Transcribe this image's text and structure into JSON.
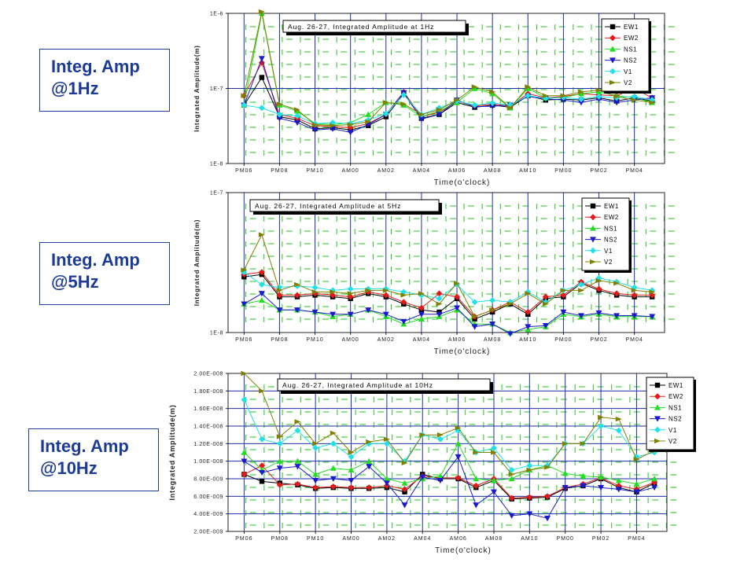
{
  "labels": [
    {
      "line1": "Integ. Amp",
      "line2": "@1Hz"
    },
    {
      "line1": "Integ. Amp",
      "line2": "@5Hz"
    },
    {
      "line1": "Integ. Amp",
      "line2": "@10Hz"
    }
  ],
  "colors": {
    "EW1": "#000000",
    "EW2": "#e31a1c",
    "NS1": "#22dd22",
    "NS2": "#1a1acc",
    "V1": "#22e0e8",
    "V2": "#808000",
    "grid": "#1c2fa8",
    "minor": "#33cc33"
  },
  "chart_data": [
    {
      "type": "line",
      "title": "Aug. 26-27, Integrated Amplitude at 1Hz",
      "xlabel": "Time(o'clock)",
      "ylabel": "Integrated Amplitude(m)",
      "yscale": "log",
      "ylim": [
        1e-08,
        1e-06
      ],
      "yticks": [
        1e-08,
        1e-07,
        1e-06
      ],
      "ytick_labels": [
        "1E-8",
        "1E-7",
        "1E-6"
      ],
      "xtick_labels": [
        "PM06",
        "PM08",
        "PM10",
        "AM00",
        "AM02",
        "AM04",
        "AM06",
        "AM08",
        "AM10",
        "PM00",
        "PM02",
        "PM04"
      ],
      "legend": "top-right",
      "x": [
        0,
        1,
        2,
        3,
        4,
        5,
        6,
        7,
        8,
        9,
        10,
        11,
        12,
        13,
        14,
        15,
        16,
        17,
        18,
        19,
        20,
        21,
        22,
        23
      ],
      "series": [
        {
          "name": "EW1",
          "values": [
            6e-08,
            1.4e-07,
            4.2e-08,
            3.8e-08,
            2.9e-08,
            3e-08,
            2.8e-08,
            3.2e-08,
            4.2e-08,
            8.5e-08,
            4e-08,
            4.5e-08,
            6.5e-08,
            5.6e-08,
            6e-08,
            5.6e-08,
            8e-08,
            7e-08,
            7.2e-08,
            7e-08,
            7.5e-08,
            6.8e-08,
            7.5e-08,
            6.8e-08
          ]
        },
        {
          "name": "EW2",
          "values": [
            8e-08,
            2.2e-07,
            4.5e-08,
            4e-08,
            3.2e-08,
            3.1e-08,
            3e-08,
            3.4e-08,
            4.5e-08,
            9e-08,
            4.2e-08,
            4.8e-08,
            6.8e-08,
            5.8e-08,
            6.2e-08,
            5.8e-08,
            8.5e-08,
            7.5e-08,
            7.8e-08,
            8.5e-08,
            8.2e-08,
            8e-08,
            1e-07,
            7.5e-08
          ]
        },
        {
          "name": "NS1",
          "values": [
            6e-08,
            1e-06,
            6e-08,
            5e-08,
            3.4e-08,
            3.3e-08,
            3.5e-08,
            4.5e-08,
            6.5e-08,
            6e-08,
            4.2e-08,
            5e-08,
            6.5e-08,
            1e-07,
            8.5e-08,
            5.5e-08,
            1e-07,
            7.5e-08,
            7.5e-08,
            8.5e-08,
            9e-08,
            8e-08,
            7.5e-08,
            6.5e-08
          ]
        },
        {
          "name": "NS2",
          "values": [
            6e-08,
            2.5e-07,
            4e-08,
            3.5e-08,
            2.8e-08,
            2.9e-08,
            2.6e-08,
            3.3e-08,
            4.5e-08,
            8.8e-08,
            3.9e-08,
            4.5e-08,
            7e-08,
            5.7e-08,
            5.8e-08,
            6e-08,
            7.8e-08,
            7.3e-08,
            7e-08,
            6.5e-08,
            7.2e-08,
            6.5e-08,
            7e-08,
            7.5e-08
          ]
        },
        {
          "name": "V1",
          "values": [
            6e-08,
            5.5e-08,
            4.5e-08,
            4.3e-08,
            3.4e-08,
            3.5e-08,
            3.4e-08,
            3.8e-08,
            4.6e-08,
            8.2e-08,
            4.5e-08,
            5.5e-08,
            6.8e-08,
            6e-08,
            6.4e-08,
            6e-08,
            8e-08,
            7.4e-08,
            7.6e-08,
            7.2e-08,
            7.8e-08,
            7.5e-08,
            7.8e-08,
            7e-08
          ]
        },
        {
          "name": "V2",
          "values": [
            8e-08,
            1.05e-06,
            6.2e-08,
            5.2e-08,
            3.3e-08,
            3.2e-08,
            3.3e-08,
            3.6e-08,
            6.5e-08,
            6.2e-08,
            4.5e-08,
            5.2e-08,
            7e-08,
            1.05e-07,
            9e-08,
            5.5e-08,
            1.05e-07,
            8e-08,
            8e-08,
            9e-08,
            9.5e-08,
            7.8e-08,
            7e-08,
            6.5e-08
          ]
        }
      ]
    },
    {
      "type": "line",
      "title": "Aug. 26-27, Integrated Amplitude at 5Hz",
      "xlabel": "Time(o'clock)",
      "ylabel": "Integrated Amplitude(m)",
      "yscale": "log",
      "ylim": [
        1e-08,
        1e-07
      ],
      "yticks": [
        1e-08,
        1e-07
      ],
      "ytick_labels": [
        "1E-8",
        "1E-7"
      ],
      "xtick_labels": [
        "PM06",
        "PM08",
        "PM10",
        "AM00",
        "AM02",
        "AM04",
        "AM06",
        "AM08",
        "AM10",
        "PM00",
        "PM02",
        "PM04"
      ],
      "legend": "top-right",
      "x": [
        0,
        1,
        2,
        3,
        4,
        5,
        6,
        7,
        8,
        9,
        10,
        11,
        12,
        13,
        14,
        15,
        16,
        17,
        18,
        19,
        20,
        21,
        22,
        23
      ],
      "series": [
        {
          "name": "EW1",
          "values": [
            2.5e-08,
            2.6e-08,
            1.8e-08,
            1.8e-08,
            1.85e-08,
            1.8e-08,
            1.75e-08,
            1.9e-08,
            1.8e-08,
            1.6e-08,
            1.45e-08,
            1.4e-08,
            1.75e-08,
            1.25e-08,
            1.4e-08,
            1.6e-08,
            1.35e-08,
            1.75e-08,
            1.8e-08,
            2.25e-08,
            2e-08,
            1.85e-08,
            1.8e-08,
            1.8e-08
          ]
        },
        {
          "name": "EW2",
          "values": [
            2.6e-08,
            2.7e-08,
            1.85e-08,
            1.85e-08,
            1.9e-08,
            1.85e-08,
            1.8e-08,
            1.95e-08,
            1.85e-08,
            1.65e-08,
            1.5e-08,
            1.9e-08,
            1.8e-08,
            1.3e-08,
            1.45e-08,
            1.65e-08,
            1.4e-08,
            1.8e-08,
            1.85e-08,
            2.3e-08,
            2.05e-08,
            1.9e-08,
            1.85e-08,
            1.85e-08
          ]
        },
        {
          "name": "NS1",
          "values": [
            1.6e-08,
            1.7e-08,
            1.45e-08,
            1.45e-08,
            1.4e-08,
            1.3e-08,
            1.35e-08,
            1.45e-08,
            1.3e-08,
            1.15e-08,
            1.25e-08,
            1.3e-08,
            1.45e-08,
            1.15e-08,
            1.15e-08,
            1e-08,
            1.05e-08,
            1.1e-08,
            1.35e-08,
            1.3e-08,
            1.35e-08,
            1.3e-08,
            1.3e-08,
            1.3e-08
          ]
        },
        {
          "name": "NS2",
          "values": [
            1.6e-08,
            1.9e-08,
            1.45e-08,
            1.45e-08,
            1.4e-08,
            1.35e-08,
            1.35e-08,
            1.45e-08,
            1.35e-08,
            1.2e-08,
            1.35e-08,
            1.35e-08,
            1.5e-08,
            1.1e-08,
            1.15e-08,
            9.8e-09,
            1.1e-08,
            1.12e-08,
            1.4e-08,
            1.32e-08,
            1.38e-08,
            1.32e-08,
            1.32e-08,
            1.3e-08
          ]
        },
        {
          "name": "V1",
          "values": [
            2.7e-08,
            2.2e-08,
            2.1e-08,
            2.15e-08,
            2.1e-08,
            2e-08,
            2.05e-08,
            2.05e-08,
            2.05e-08,
            1.95e-08,
            1.85e-08,
            1.75e-08,
            2.2e-08,
            1.65e-08,
            1.7e-08,
            1.65e-08,
            1.95e-08,
            1.65e-08,
            2e-08,
            2.2e-08,
            2.45e-08,
            2.3e-08,
            2.1e-08,
            2e-08
          ]
        },
        {
          "name": "V2",
          "values": [
            2.8e-08,
            5e-08,
            2e-08,
            2.2e-08,
            1.95e-08,
            1.95e-08,
            1.9e-08,
            2e-08,
            2e-08,
            1.85e-08,
            1.9e-08,
            1.6e-08,
            2.25e-08,
            1.3e-08,
            1.45e-08,
            1.6e-08,
            1.9e-08,
            1.6e-08,
            2e-08,
            2e-08,
            2.35e-08,
            2.25e-08,
            2e-08,
            1.95e-08
          ]
        }
      ]
    },
    {
      "type": "line",
      "title": "Aug. 26-27, Integrated Amplitude at 10Hz",
      "xlabel": "Time(o'clock)",
      "ylabel": "Integrated Amplitude(m)",
      "yscale": "linear",
      "ylim": [
        2e-09,
        2e-08
      ],
      "yticks": [
        2e-09,
        4e-09,
        6e-09,
        8e-09,
        1e-08,
        1.2e-08,
        1.4e-08,
        1.6e-08,
        1.8e-08,
        2e-08
      ],
      "ytick_labels": [
        "2.00E-009",
        "4.00E-009",
        "6.00E-009",
        "8.00E-009",
        "1.00E-008",
        "1.20E-008",
        "1.40E-008",
        "1.60E-008",
        "1.80E-008",
        "2.00E-008"
      ],
      "xtick_labels": [
        "PM06",
        "PM08",
        "PM10",
        "AM00",
        "AM02",
        "AM04",
        "AM06",
        "AM08",
        "AM10",
        "PM00",
        "PM02",
        "PM04"
      ],
      "legend": "top-right",
      "x": [
        0,
        1,
        2,
        3,
        4,
        5,
        6,
        7,
        8,
        9,
        10,
        11,
        12,
        13,
        14,
        15,
        16,
        17,
        18,
        19,
        20,
        21,
        22,
        23
      ],
      "series": [
        {
          "name": "EW1",
          "values": [
            8.5e-09,
            7.7e-09,
            7.5e-09,
            7.3e-09,
            6.9e-09,
            7e-09,
            6.9e-09,
            6.9e-09,
            7e-09,
            6.5e-09,
            8.5e-09,
            8e-09,
            8e-09,
            7e-09,
            7.8e-09,
            5.7e-09,
            5.8e-09,
            5.9e-09,
            6.9e-09,
            7.2e-09,
            8e-09,
            7e-09,
            6.5e-09,
            7.5e-09
          ]
        },
        {
          "name": "EW2",
          "values": [
            8.5e-09,
            9.5e-09,
            7.3e-09,
            7.4e-09,
            7e-09,
            7.1e-09,
            7e-09,
            7e-09,
            7.2e-09,
            6.8e-09,
            8.3e-09,
            8.1e-09,
            8.1e-09,
            7.2e-09,
            8e-09,
            5.8e-09,
            5.9e-09,
            6e-09,
            7e-09,
            7.4e-09,
            8.1e-09,
            7.2e-09,
            6.8e-09,
            7.6e-09
          ]
        },
        {
          "name": "NS1",
          "values": [
            1.1e-08,
            9e-09,
            1e-08,
            1e-08,
            8.5e-09,
            9.2e-09,
            9e-09,
            1e-08,
            8e-09,
            7.5e-09,
            8e-09,
            8.3e-09,
            1.2e-08,
            8e-09,
            7.8e-09,
            8e-09,
            9e-09,
            9.5e-09,
            8.6e-09,
            8.3e-09,
            8.2e-09,
            7.8e-09,
            7.4e-09,
            8e-09
          ]
        },
        {
          "name": "NS2",
          "values": [
            1e-08,
            8.7e-09,
            9.2e-09,
            9.4e-09,
            7.8e-09,
            8e-09,
            7.8e-09,
            9.4e-09,
            7.5e-09,
            5e-09,
            8.2e-09,
            7.8e-09,
            1.05e-08,
            5e-09,
            6.5e-09,
            3.8e-09,
            4e-09,
            3.5e-09,
            7e-09,
            7.2e-09,
            7e-09,
            6.8e-09,
            6.5e-09,
            7e-09
          ]
        },
        {
          "name": "V1",
          "values": [
            1.7e-08,
            1.25e-08,
            1.2e-08,
            1.35e-08,
            1.15e-08,
            1.2e-08,
            1.05e-08,
            1.2e-08,
            1.2e-08,
            1e-08,
            1.3e-08,
            1.25e-08,
            1.35e-08,
            1.1e-08,
            1.15e-08,
            9e-09,
            9.5e-09,
            9.5e-09,
            1.2e-08,
            1.2e-08,
            1.4e-08,
            1.35e-08,
            1.05e-08,
            1.1e-08
          ]
        },
        {
          "name": "V2",
          "values": [
            2e-08,
            1.8e-08,
            1.28e-08,
            1.45e-08,
            1.2e-08,
            1.32e-08,
            1.1e-08,
            1.22e-08,
            1.25e-08,
            9.8e-09,
            1.3e-08,
            1.3e-08,
            1.38e-08,
            1.1e-08,
            1.1e-08,
            8.5e-09,
            9e-09,
            9.3e-09,
            1.2e-08,
            1.2e-08,
            1.5e-08,
            1.48e-08,
            1.02e-08,
            1.12e-08
          ]
        }
      ]
    }
  ]
}
